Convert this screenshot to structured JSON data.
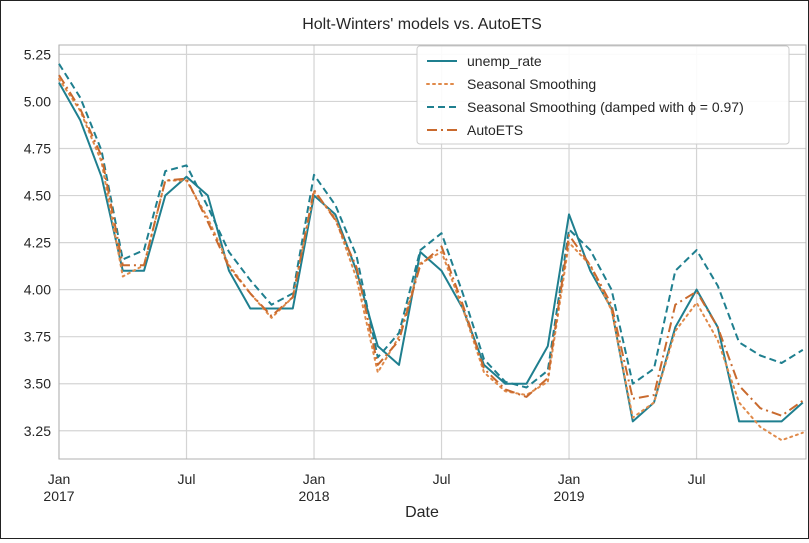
{
  "chart_data": {
    "type": "line",
    "title": "Holt-Winters' models vs. AutoETS",
    "xlabel": "Date",
    "ylabel": "",
    "ylim": [
      3.1,
      5.3
    ],
    "y_ticks": [
      "3.25",
      "3.50",
      "3.75",
      "4.00",
      "4.25",
      "4.50",
      "4.75",
      "5.00",
      "5.25"
    ],
    "x_tick_labels": [
      {
        "month": "Jan",
        "year": "2017",
        "index": 0
      },
      {
        "month": "Jul",
        "year": "",
        "index": 6
      },
      {
        "month": "Jan",
        "year": "2018",
        "index": 12
      },
      {
        "month": "Jul",
        "year": "",
        "index": 18
      },
      {
        "month": "Jan",
        "year": "2019",
        "index": 24
      },
      {
        "month": "Jul",
        "year": "",
        "index": 30
      }
    ],
    "x": [
      "2017-01",
      "2017-02",
      "2017-03",
      "2017-04",
      "2017-05",
      "2017-06",
      "2017-07",
      "2017-08",
      "2017-09",
      "2017-10",
      "2017-11",
      "2017-12",
      "2018-01",
      "2018-02",
      "2018-03",
      "2018-04",
      "2018-05",
      "2018-06",
      "2018-07",
      "2018-08",
      "2018-09",
      "2018-10",
      "2018-11",
      "2018-12",
      "2019-01",
      "2019-02",
      "2019-03",
      "2019-04",
      "2019-05",
      "2019-06",
      "2019-07",
      "2019-08",
      "2019-09",
      "2019-10",
      "2019-11",
      "2019-12"
    ],
    "grid": true,
    "legend_position": "top-right",
    "series": [
      {
        "name": "unemp_rate",
        "color": "#1f7f8f",
        "style": "solid",
        "values": [
          5.1,
          4.9,
          4.6,
          4.1,
          4.1,
          4.5,
          4.6,
          4.5,
          4.1,
          3.9,
          3.9,
          3.9,
          4.5,
          4.4,
          4.1,
          3.7,
          3.6,
          4.2,
          4.1,
          3.9,
          3.6,
          3.5,
          3.5,
          3.7,
          4.4,
          4.1,
          3.9,
          3.3,
          3.4,
          3.8,
          4.0,
          3.8,
          3.3,
          3.3,
          3.3,
          3.4
        ]
      },
      {
        "name": "Seasonal Smoothing",
        "color": "#e08a4a",
        "style": "dotted",
        "values": [
          5.12,
          4.95,
          4.68,
          4.07,
          4.13,
          4.58,
          4.58,
          4.38,
          4.13,
          3.98,
          3.85,
          3.96,
          4.52,
          4.38,
          4.06,
          3.56,
          3.75,
          4.14,
          4.2,
          3.9,
          3.56,
          3.46,
          3.44,
          3.51,
          4.25,
          4.13,
          3.89,
          3.32,
          3.4,
          3.78,
          3.93,
          3.73,
          3.4,
          3.27,
          3.2,
          3.24
        ]
      },
      {
        "name": "Seasonal Smoothing (damped with ϕ = 0.97)",
        "color": "#1f7f8f",
        "style": "dashed",
        "values": [
          5.2,
          5.02,
          4.74,
          4.16,
          4.21,
          4.63,
          4.66,
          4.44,
          4.2,
          4.05,
          3.92,
          3.98,
          4.61,
          4.45,
          4.18,
          3.64,
          3.77,
          4.21,
          4.3,
          3.98,
          3.63,
          3.51,
          3.48,
          3.57,
          4.32,
          4.21,
          4.0,
          3.5,
          3.58,
          4.1,
          4.21,
          4.02,
          3.72,
          3.65,
          3.61,
          3.68
        ]
      },
      {
        "name": "AutoETS",
        "color": "#c96a2e",
        "style": "dashdot",
        "values": [
          5.14,
          4.96,
          4.71,
          4.13,
          4.13,
          4.58,
          4.59,
          4.36,
          4.12,
          3.98,
          3.86,
          3.96,
          4.53,
          4.37,
          4.12,
          3.6,
          3.73,
          4.13,
          4.23,
          3.92,
          3.58,
          3.47,
          3.43,
          3.53,
          4.29,
          4.13,
          3.92,
          3.42,
          3.44,
          3.92,
          3.99,
          3.8,
          3.49,
          3.37,
          3.33,
          3.41
        ]
      }
    ]
  }
}
